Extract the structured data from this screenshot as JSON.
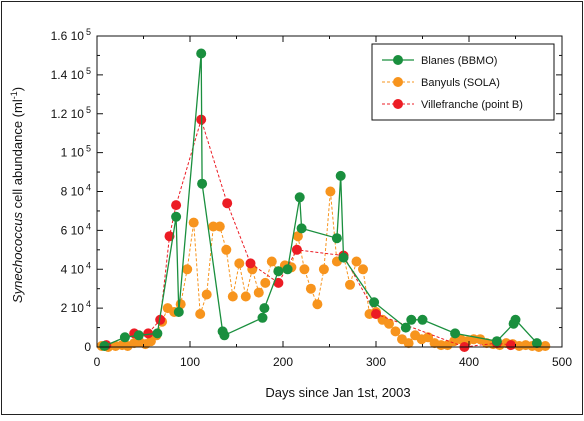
{
  "chart_data": {
    "type": "scatter",
    "title": "",
    "xlabel": "Days since Jan 1st, 2003",
    "ylabel": {
      "italic": "Synechococcus",
      "normal": " cell abundance (ml",
      "sup": "-1",
      "close": ")"
    },
    "xlim": [
      0,
      500
    ],
    "ylim": [
      0,
      160000
    ],
    "x_ticks": [
      {
        "value": 0,
        "label": "0"
      },
      {
        "value": 100,
        "label": "100"
      },
      {
        "value": 200,
        "label": "200"
      },
      {
        "value": 300,
        "label": "300"
      },
      {
        "value": 400,
        "label": "400"
      },
      {
        "value": 500,
        "label": "500"
      }
    ],
    "y_ticks": [
      {
        "value": 0,
        "base": "0",
        "exp": ""
      },
      {
        "value": 20000,
        "base": "2 10",
        "exp": "4"
      },
      {
        "value": 40000,
        "base": "4 10",
        "exp": "4"
      },
      {
        "value": 60000,
        "base": "6 10",
        "exp": "4"
      },
      {
        "value": 80000,
        "base": "8 10",
        "exp": "4"
      },
      {
        "value": 100000,
        "base": "1 10",
        "exp": "5"
      },
      {
        "value": 120000,
        "base": "1.2 10",
        "exp": "5"
      },
      {
        "value": 140000,
        "base": "1.4 10",
        "exp": "5"
      },
      {
        "value": 160000,
        "base": "1.6 10",
        "exp": "5"
      }
    ],
    "grid": false,
    "legend_position": "top-right",
    "series": [
      {
        "name": "Banyuls (SOLA)",
        "color": "#f7941d",
        "line_style": "dashed",
        "x": [
          5,
          12,
          20,
          27,
          33,
          40,
          46,
          52,
          58,
          64,
          70,
          76,
          83,
          90,
          97,
          104,
          111,
          118,
          125,
          132,
          139,
          146,
          153,
          160,
          167,
          174,
          181,
          188,
          195,
          202,
          209,
          216,
          223,
          230,
          237,
          244,
          251,
          258,
          265,
          272,
          279,
          286,
          293,
          300,
          307,
          314,
          321,
          328,
          335,
          342,
          349,
          356,
          363,
          370,
          377,
          384,
          391,
          398,
          405,
          412,
          419,
          426,
          433,
          440,
          447,
          454,
          461,
          468,
          475,
          482
        ],
        "y": [
          500,
          0,
          500,
          1000,
          500,
          2000,
          2500,
          1500,
          3000,
          6000,
          13000,
          20000,
          18000,
          22000,
          40000,
          64000,
          17000,
          27000,
          62000,
          62000,
          50000,
          26000,
          43000,
          26000,
          40000,
          28000,
          33000,
          44000,
          39000,
          42000,
          41000,
          57000,
          40000,
          30000,
          22000,
          40000,
          80000,
          44000,
          47000,
          32000,
          44000,
          40000,
          17000,
          18000,
          14000,
          12000,
          8000,
          4000,
          2000,
          6000,
          4000,
          5000,
          2000,
          1000,
          1000,
          3000,
          4000,
          3000,
          4000,
          4000,
          2000,
          1500,
          1000,
          2000,
          1500,
          500,
          1000,
          500,
          0,
          500
        ]
      },
      {
        "name": "Villefranche (point B)",
        "color": "#ec1c24",
        "line_style": "dashed",
        "x": [
          10,
          40,
          55,
          68,
          78,
          85,
          112,
          140,
          165,
          195,
          215,
          265,
          300,
          395,
          430,
          445
        ],
        "y": [
          1000,
          7000,
          7000,
          14000,
          57000,
          73000,
          117000,
          74000,
          43000,
          33000,
          50000,
          47000,
          17000,
          0,
          2000,
          1000
        ]
      },
      {
        "name": "Blanes (BBMO)",
        "color": "#1a8f3e",
        "line_style": "solid",
        "x": [
          8,
          30,
          45,
          65,
          85,
          88,
          112,
          113,
          135,
          137,
          178,
          180,
          195,
          205,
          218,
          220,
          258,
          262,
          265,
          298,
          332,
          338,
          350,
          385,
          430,
          448,
          450,
          473
        ],
        "y": [
          500,
          5000,
          6000,
          7000,
          67000,
          18000,
          151000,
          84000,
          8000,
          6000,
          15000,
          20000,
          39000,
          40000,
          77000,
          61000,
          56000,
          88000,
          46000,
          23000,
          10000,
          14000,
          14000,
          7000,
          3000,
          12000,
          14000,
          2000
        ]
      }
    ]
  }
}
